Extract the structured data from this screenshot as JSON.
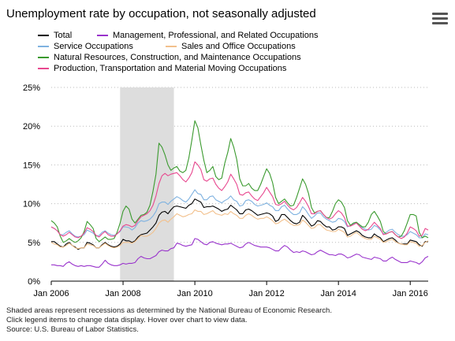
{
  "title": "Unemployment rate by occupation, not seasonally adjusted",
  "menu": {
    "icon": "menu-icon"
  },
  "legend": [
    {
      "label": "Total",
      "color": "#000000"
    },
    {
      "label": "Management, Professional, and Related Occupations",
      "color": "#9933cc"
    },
    {
      "label": "Service Occupations",
      "color": "#7fb2e0"
    },
    {
      "label": "Sales and Office Occupations",
      "color": "#f2c08c"
    },
    {
      "label": "Natural Resources, Construction, and Maintenance Occupations",
      "color": "#3a9a2e"
    },
    {
      "label": "Production, Transportation and Material Moving Occupations",
      "color": "#e8488f"
    }
  ],
  "footnotes": [
    "Shaded areas represent recessions as determined by the National Bureau of Economic Research.",
    "Click legend items to change data display. Hover over chart to view data.",
    "Source: U.S. Bureau of Labor Statistics."
  ],
  "chart_data": {
    "type": "line",
    "x_start": "Jan 2006",
    "x_end": "Jul 2016",
    "frequency": "monthly",
    "ylim": [
      0,
      25
    ],
    "y_ticks": [
      "0%",
      "5%",
      "10%",
      "15%",
      "20%",
      "25%"
    ],
    "x_ticks": [
      "Jan 2006",
      "Jan 2008",
      "Jan 2010",
      "Jan 2012",
      "Jan 2014",
      "Jan 2016"
    ],
    "grid": "horizontal dotted",
    "recession": {
      "start": "Dec 2007",
      "end": "Jun 2009",
      "color": "#dddddd"
    },
    "series": [
      {
        "name": "Total",
        "color": "#000000",
        "values": [
          5.1,
          5.1,
          4.8,
          4.5,
          4.4,
          4.8,
          5.0,
          4.6,
          4.4,
          4.1,
          4.3,
          4.3,
          5.0,
          4.9,
          4.7,
          4.3,
          4.3,
          4.7,
          5.0,
          4.7,
          4.5,
          4.4,
          4.5,
          4.8,
          5.4,
          5.2,
          5.2,
          5.0,
          5.2,
          5.7,
          6.0,
          6.1,
          6.2,
          6.6,
          7.0,
          7.5,
          8.5,
          8.9,
          9.0,
          8.7,
          9.2,
          9.6,
          9.7,
          9.6,
          9.5,
          9.4,
          9.8,
          10.0,
          10.6,
          10.4,
          10.2,
          9.5,
          9.6,
          9.6,
          9.7,
          9.5,
          9.3,
          9.0,
          9.2,
          9.3,
          9.8,
          9.5,
          9.2,
          8.7,
          8.7,
          9.2,
          9.3,
          9.1,
          8.8,
          8.5,
          8.6,
          8.7,
          8.8,
          8.7,
          8.4,
          7.7,
          7.9,
          8.6,
          8.6,
          8.2,
          7.8,
          7.5,
          7.4,
          7.6,
          8.5,
          8.1,
          7.6,
          7.1,
          7.3,
          7.8,
          7.7,
          7.3,
          7.0,
          7.0,
          6.6,
          6.7,
          7.0,
          7.0,
          6.8,
          5.9,
          6.1,
          6.3,
          6.5,
          6.3,
          5.9,
          5.7,
          5.6,
          5.6,
          6.1,
          5.8,
          5.6,
          5.1,
          5.3,
          5.5,
          5.6,
          5.3,
          4.9,
          4.8,
          4.8,
          4.8,
          5.3,
          5.2,
          5.1,
          4.7,
          4.5,
          5.1,
          5.1
        ]
      },
      {
        "name": "Management, Professional, and Related Occupations",
        "color": "#9933cc",
        "values": [
          2.1,
          2.1,
          2.0,
          2.0,
          1.9,
          2.3,
          2.5,
          2.2,
          2.0,
          1.9,
          2.0,
          1.9,
          2.0,
          2.0,
          1.9,
          1.8,
          1.8,
          2.2,
          2.7,
          2.3,
          2.1,
          2.0,
          2.0,
          2.1,
          2.3,
          2.2,
          2.3,
          2.3,
          2.4,
          2.9,
          3.2,
          3.0,
          2.9,
          2.9,
          3.1,
          3.3,
          3.8,
          4.0,
          3.9,
          3.9,
          4.2,
          4.3,
          4.9,
          4.8,
          4.6,
          4.5,
          4.6,
          4.7,
          5.5,
          5.4,
          5.1,
          4.8,
          4.7,
          5.0,
          5.1,
          4.9,
          4.8,
          4.7,
          4.8,
          4.8,
          4.9,
          4.7,
          4.5,
          4.3,
          4.4,
          4.8,
          5.0,
          4.8,
          4.6,
          4.5,
          4.4,
          4.4,
          4.4,
          4.3,
          4.1,
          3.9,
          3.9,
          4.3,
          4.6,
          4.4,
          4.0,
          3.7,
          3.8,
          3.7,
          3.9,
          3.8,
          3.6,
          3.4,
          3.5,
          3.8,
          4.0,
          3.8,
          3.6,
          3.4,
          3.4,
          3.3,
          3.5,
          3.5,
          3.3,
          3.0,
          3.1,
          3.3,
          3.5,
          3.4,
          3.1,
          3.0,
          2.9,
          2.8,
          3.1,
          3.0,
          2.9,
          2.6,
          2.6,
          2.9,
          3.1,
          2.8,
          2.6,
          2.4,
          2.4,
          2.4,
          2.6,
          2.5,
          2.4,
          2.2,
          2.5,
          3.0,
          3.2
        ]
      },
      {
        "name": "Service Occupations",
        "color": "#7fb2e0",
        "values": [
          7.0,
          6.8,
          6.5,
          6.0,
          6.0,
          6.3,
          6.5,
          6.1,
          5.8,
          5.7,
          5.8,
          6.0,
          6.6,
          6.4,
          6.2,
          5.8,
          5.9,
          6.3,
          6.5,
          6.2,
          6.0,
          5.9,
          6.1,
          6.4,
          7.0,
          7.0,
          6.9,
          6.6,
          6.9,
          7.5,
          7.8,
          7.7,
          7.8,
          8.0,
          8.4,
          9.0,
          10.0,
          10.2,
          10.2,
          9.9,
          10.3,
          10.6,
          10.9,
          10.7,
          10.4,
          10.2,
          10.6,
          11.2,
          11.8,
          11.3,
          11.2,
          10.5,
          10.5,
          10.9,
          11.0,
          10.5,
          10.3,
          10.1,
          10.4,
          10.6,
          11.0,
          10.5,
          10.3,
          9.7,
          9.8,
          10.4,
          10.5,
          10.3,
          9.9,
          9.7,
          9.8,
          9.9,
          10.1,
          9.8,
          9.6,
          9.1,
          9.1,
          9.6,
          9.8,
          9.3,
          8.9,
          8.6,
          8.6,
          8.8,
          9.6,
          9.2,
          8.6,
          8.1,
          8.4,
          8.8,
          8.8,
          8.3,
          8.0,
          7.8,
          7.6,
          7.7,
          8.1,
          8.0,
          7.7,
          7.0,
          7.2,
          7.4,
          7.6,
          7.2,
          6.9,
          6.7,
          6.6,
          6.7,
          7.2,
          7.0,
          6.6,
          6.1,
          6.3,
          6.6,
          6.7,
          6.3,
          6.0,
          5.8,
          5.8,
          6.0,
          6.4,
          6.2,
          6.0,
          5.6,
          5.6,
          6.1,
          6.0
        ]
      },
      {
        "name": "Sales and Office Occupations",
        "color": "#f2c08c",
        "values": [
          5.0,
          4.8,
          4.7,
          4.4,
          4.4,
          4.6,
          4.9,
          4.6,
          4.3,
          4.2,
          4.3,
          4.3,
          4.8,
          4.7,
          4.6,
          4.3,
          4.3,
          4.6,
          4.9,
          4.6,
          4.4,
          4.3,
          4.4,
          4.6,
          5.0,
          5.0,
          5.0,
          4.9,
          5.1,
          5.5,
          5.9,
          5.8,
          5.8,
          6.0,
          6.3,
          6.8,
          7.5,
          7.8,
          7.9,
          7.6,
          8.0,
          8.3,
          8.7,
          8.5,
          8.3,
          8.4,
          8.6,
          8.7,
          9.2,
          9.0,
          9.0,
          8.6,
          8.7,
          8.9,
          9.1,
          8.7,
          8.6,
          8.5,
          8.7,
          8.6,
          9.0,
          8.7,
          8.5,
          8.1,
          8.1,
          8.5,
          8.7,
          8.5,
          8.2,
          8.0,
          8.1,
          8.1,
          8.3,
          8.1,
          7.8,
          7.4,
          7.5,
          7.8,
          8.0,
          7.7,
          7.4,
          7.2,
          7.2,
          7.3,
          7.9,
          7.6,
          7.2,
          6.8,
          6.9,
          7.3,
          7.3,
          6.9,
          6.6,
          6.5,
          6.4,
          6.4,
          6.7,
          6.5,
          6.3,
          5.7,
          5.8,
          6.1,
          6.3,
          6.0,
          5.7,
          5.5,
          5.4,
          5.4,
          5.8,
          5.6,
          5.4,
          5.0,
          5.1,
          5.3,
          5.4,
          5.1,
          4.9,
          4.8,
          4.7,
          4.7,
          5.1,
          5.0,
          4.9,
          4.5,
          4.6,
          5.0,
          5.2
        ]
      },
      {
        "name": "Natural Resources, Construction, and Maintenance Occupations",
        "color": "#3a9a2e",
        "values": [
          7.8,
          7.5,
          7.0,
          5.8,
          5.0,
          5.2,
          5.5,
          5.2,
          5.0,
          5.2,
          5.6,
          6.4,
          7.7,
          7.3,
          6.8,
          5.5,
          5.1,
          5.4,
          5.7,
          5.4,
          5.4,
          5.5,
          6.3,
          7.5,
          9.0,
          9.7,
          9.3,
          8.0,
          7.5,
          8.0,
          8.5,
          8.6,
          8.9,
          9.8,
          11.6,
          13.8,
          17.8,
          17.3,
          16.3,
          15.0,
          14.3,
          14.6,
          14.8,
          14.2,
          14.0,
          14.3,
          15.9,
          18.2,
          20.7,
          19.8,
          17.6,
          15.6,
          14.0,
          14.3,
          14.8,
          13.5,
          13.1,
          13.3,
          15.2,
          16.6,
          18.4,
          17.3,
          15.7,
          13.2,
          12.3,
          12.3,
          12.6,
          12.0,
          11.7,
          11.7,
          12.5,
          13.5,
          14.5,
          13.9,
          12.7,
          10.8,
          10.0,
          10.3,
          10.6,
          10.1,
          9.7,
          9.8,
          10.8,
          12.0,
          13.2,
          12.5,
          11.3,
          9.5,
          8.8,
          9.0,
          9.1,
          8.6,
          8.2,
          8.2,
          9.0,
          10.0,
          10.5,
          10.2,
          9.5,
          7.8,
          7.2,
          7.5,
          7.6,
          7.3,
          7.0,
          7.0,
          7.6,
          8.6,
          9.0,
          8.4,
          7.7,
          6.4,
          6.1,
          6.3,
          6.4,
          6.0,
          5.7,
          5.8,
          6.5,
          7.5,
          8.6,
          8.6,
          8.4,
          6.3,
          5.6,
          5.8,
          5.6
        ]
      },
      {
        "name": "Production, Transportation and Material Moving Occupations",
        "color": "#e8488f",
        "values": [
          7.0,
          6.8,
          6.5,
          6.0,
          5.8,
          6.0,
          6.3,
          6.0,
          5.7,
          5.6,
          5.8,
          6.2,
          6.9,
          6.7,
          6.4,
          5.9,
          5.7,
          6.1,
          6.4,
          6.0,
          5.8,
          5.8,
          6.1,
          6.5,
          7.1,
          7.3,
          7.2,
          7.0,
          7.2,
          7.8,
          8.3,
          8.5,
          8.7,
          9.1,
          9.8,
          11.0,
          12.6,
          13.6,
          13.9,
          13.6,
          13.8,
          13.9,
          14.0,
          13.6,
          13.1,
          12.8,
          13.3,
          14.0,
          15.4,
          15.0,
          14.4,
          13.1,
          12.9,
          13.2,
          13.3,
          12.5,
          12.0,
          11.7,
          12.2,
          12.8,
          13.8,
          13.2,
          12.5,
          11.2,
          11.1,
          11.4,
          11.5,
          11.0,
          10.6,
          10.4,
          10.9,
          11.4,
          12.1,
          11.5,
          10.9,
          9.9,
          9.8,
          10.0,
          10.3,
          9.8,
          9.4,
          9.2,
          9.5,
          10.1,
          10.8,
          10.3,
          9.6,
          8.7,
          8.7,
          9.0,
          9.1,
          8.6,
          8.2,
          8.0,
          8.2,
          8.7,
          9.1,
          8.8,
          8.2,
          7.1,
          7.1,
          7.3,
          7.5,
          7.1,
          6.7,
          6.5,
          6.7,
          7.1,
          7.6,
          7.2,
          6.8,
          6.0,
          6.1,
          6.3,
          6.4,
          6.0,
          5.7,
          5.5,
          5.7,
          6.2,
          7.0,
          6.8,
          6.5,
          5.8,
          5.9,
          6.8,
          6.6
        ]
      }
    ]
  }
}
